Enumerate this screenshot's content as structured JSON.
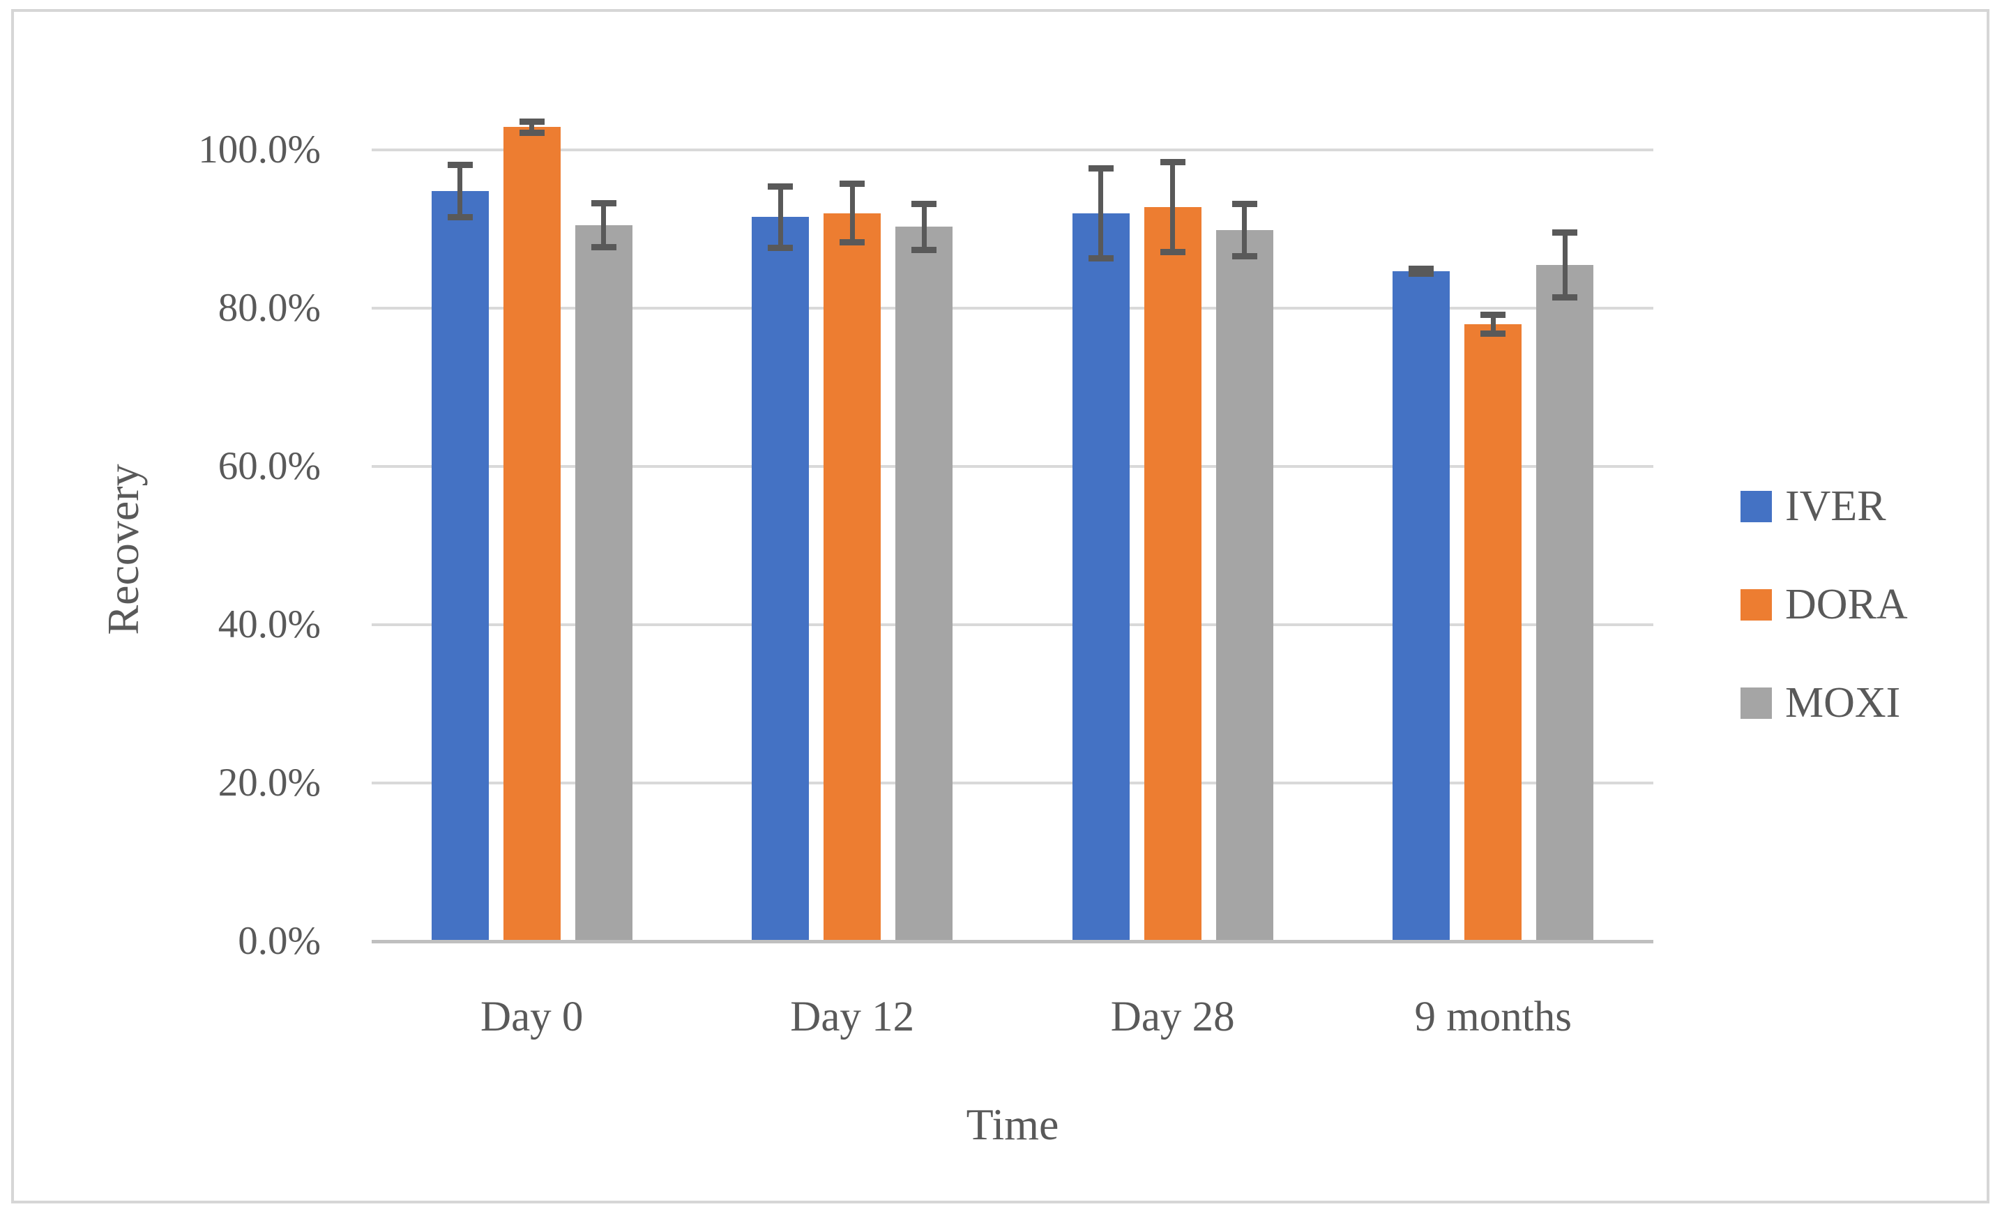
{
  "chart_data": {
    "type": "bar",
    "title": "",
    "xlabel": "Time",
    "ylabel": "Recovery",
    "categories": [
      "Day 0",
      "Day 12",
      "Day 28",
      "9 months"
    ],
    "series": [
      {
        "name": "IVER",
        "color": "#4472C4",
        "values": [
          94.8,
          91.5,
          92.0,
          84.7
        ],
        "errors": [
          3.3,
          3.9,
          5.7,
          0.3
        ]
      },
      {
        "name": "DORA",
        "color": "#ED7D31",
        "values": [
          102.9,
          92.0,
          92.8,
          78.0
        ],
        "errors": [
          0.7,
          3.7,
          5.7,
          1.2
        ]
      },
      {
        "name": "MOXI",
        "color": "#A5A5A5",
        "values": [
          90.5,
          90.3,
          89.9,
          85.5
        ],
        "errors": [
          2.8,
          2.9,
          3.3,
          4.1
        ]
      }
    ],
    "y_axis": {
      "min": 0,
      "max": 100,
      "step": 20,
      "tick_values": [
        0,
        20,
        40,
        60,
        80,
        100
      ],
      "tick_labels": [
        "0.0%",
        "20.0%",
        "40.0%",
        "60.0%",
        "80.0%",
        "100.0%"
      ]
    },
    "legend_position": "right",
    "grid": true,
    "colors": {
      "error_bar": "#595959",
      "gridline": "#d9d9d9",
      "axis_line": "#bfbfbf",
      "text": "#595959",
      "frame_border": "#d6d6d6",
      "background": "#ffffff"
    }
  }
}
